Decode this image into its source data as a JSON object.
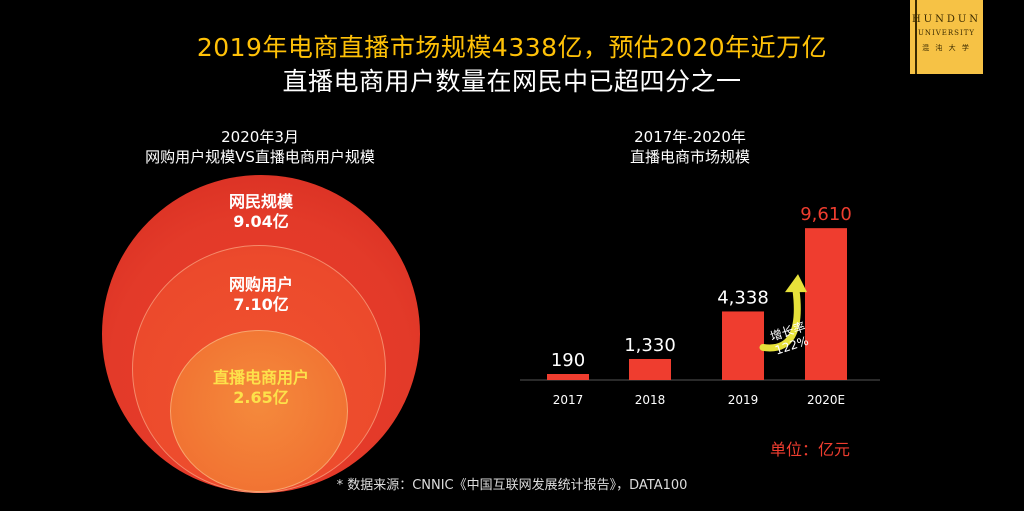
{
  "title": {
    "line1": "2019年电商直播市场规模4338亿，预估2020年近万亿",
    "line2": "直播电商用户数量在网民中已超四分之一"
  },
  "logo": {
    "line1": "HUNDUN",
    "line2": "UNIVERSITY",
    "line3": "混 沌 大 学"
  },
  "left_panel": {
    "heading_line1": "2020年3月",
    "heading_line2": "网购用户规模VS直播电商用户规模",
    "circles": [
      {
        "name": "网民规模",
        "value": "9.04亿"
      },
      {
        "name": "网购用户",
        "value": "7.10亿"
      },
      {
        "name": "直播电商用户",
        "value": "2.65亿"
      }
    ]
  },
  "right_panel": {
    "heading_line1": "2017年-2020年",
    "heading_line2": "直播电商市场规模"
  },
  "colors": {
    "bar": "#ef3d2f",
    "title_accent": "#ffc107",
    "arrow": "#e7e23a",
    "logo_bg": "#f6c245"
  },
  "chart_data": {
    "type": "bar",
    "categories": [
      "2017",
      "2018",
      "2019",
      "2020E"
    ],
    "values": [
      190,
      1330,
      4338,
      9610
    ],
    "value_labels": [
      "190",
      "1,330",
      "4,338",
      "9,610"
    ],
    "unit": "单位：亿元",
    "annotation": {
      "text_line1": "增长率",
      "text_line2": "122%"
    },
    "grid": false,
    "ylim": [
      0,
      10000
    ]
  },
  "source": "* 数据来源：CNNIC《中国互联网发展统计报告》，DATA100"
}
